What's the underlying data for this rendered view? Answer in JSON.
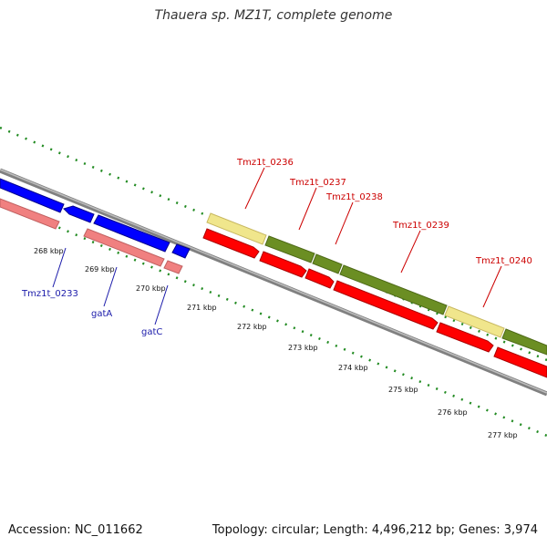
{
  "title": "Thauera sp. MZ1T, complete genome",
  "footer": {
    "accession": "Accession: NC_011662",
    "summary": "Topology: circular; Length: 4,496,212 bp; Genes: 3,974"
  },
  "ruler": [
    "268 kbp",
    "269 kbp",
    "270 kbp",
    "271 kbp",
    "272 kbp",
    "273 kbp",
    "274 kbp",
    "275 kbp",
    "276 kbp",
    "277 kbp"
  ],
  "gene_labels_forward": [
    "Tmz1t_0236",
    "Tmz1t_0237",
    "Tmz1t_0238",
    "Tmz1t_0239",
    "Tmz1t_0240"
  ],
  "gene_labels_reverse": [
    "Tmz1t_0233",
    "gatA",
    "gatC"
  ],
  "colors": {
    "forward_gene": "#ff0000",
    "reverse_gene": "#0000ff",
    "cds_olive": "#6b8e23",
    "cds_khaki": "#f0e68c",
    "rna_pink": "#f08080",
    "tick_green": "#228b22",
    "backbone": "#808080"
  }
}
